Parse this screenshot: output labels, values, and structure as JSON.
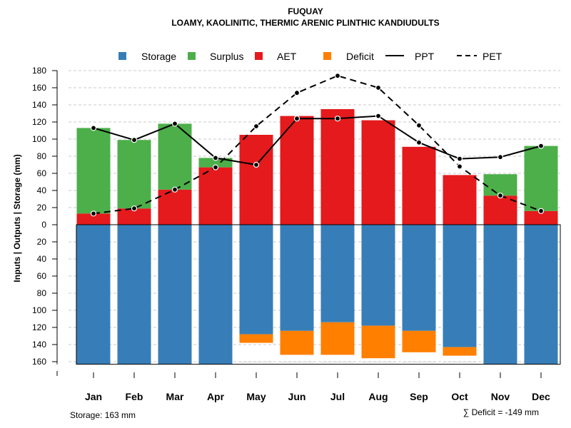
{
  "chart_data": {
    "type": "bar",
    "title": "FUQUAY",
    "subtitle": "LOAMY, KAOLINITIC, THERMIC ARENIC PLINTHIC KANDIUDULTS",
    "ylabel": "Inputs | Outputs | Storage     (mm)",
    "ylim": [
      -160,
      180
    ],
    "ticks_up": [
      0,
      20,
      40,
      60,
      80,
      100,
      120,
      140,
      160,
      180
    ],
    "ticks_down": [
      20,
      40,
      60,
      80,
      100,
      120,
      140,
      160
    ],
    "categories": [
      "Jan",
      "Feb",
      "Mar",
      "Apr",
      "May",
      "Jun",
      "Jul",
      "Aug",
      "Sep",
      "Oct",
      "Nov",
      "Dec"
    ],
    "storage_capacity": 163,
    "series": [
      {
        "name": "Storage",
        "color": "#377EB8",
        "values": [
          163,
          163,
          163,
          163,
          128,
          124,
          114,
          118,
          124,
          143,
          163,
          163
        ]
      },
      {
        "name": "Surplus",
        "color": "#4DAF4A",
        "values": [
          100,
          80,
          77,
          11,
          0,
          0,
          0,
          0,
          0,
          0,
          25,
          76
        ]
      },
      {
        "name": "AET",
        "color": "#E41A1C",
        "values": [
          13,
          19,
          41,
          67,
          105,
          127,
          135,
          122,
          91,
          58,
          34,
          16
        ]
      },
      {
        "name": "Deficit",
        "color": "#FF7F00",
        "values": [
          0,
          0,
          0,
          0,
          10,
          28,
          38,
          38,
          25,
          10,
          0,
          0
        ]
      },
      {
        "name": "PPT",
        "color": "#000000",
        "style": "solid",
        "values": [
          113,
          99,
          118,
          78,
          70,
          124,
          124,
          127,
          96,
          77,
          79,
          92
        ]
      },
      {
        "name": "PET",
        "color": "#000000",
        "style": "dashed",
        "values": [
          13,
          19,
          41,
          67,
          115,
          154,
          174,
          160,
          116,
          68,
          34,
          16
        ]
      }
    ],
    "legend": [
      "Storage",
      "Surplus",
      "AET",
      "Deficit",
      "PPT",
      "PET"
    ],
    "footer_left": "Storage: 163 mm",
    "footer_right": "∑ Deficit = -149 mm"
  }
}
